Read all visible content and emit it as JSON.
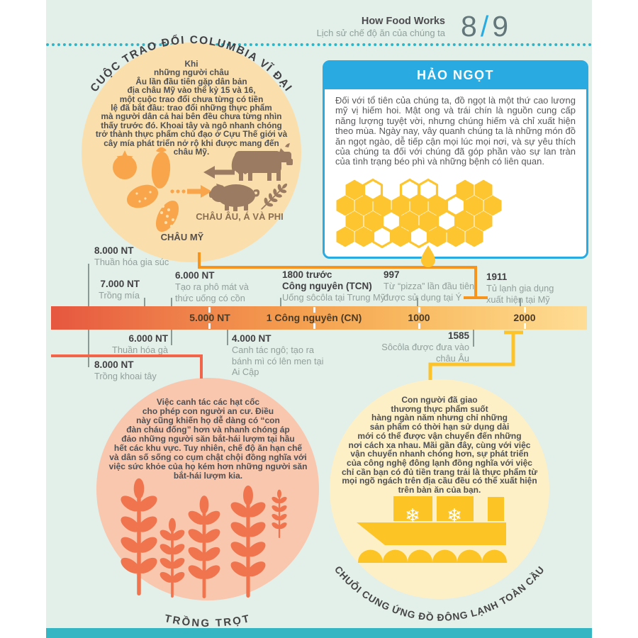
{
  "header": {
    "book_title": "How Food Works",
    "chapter_title": "Lịch sử chế độ ăn của chúng ta",
    "page_current": "8",
    "page_separator": "/",
    "page_next": "9"
  },
  "columbian_circle": {
    "arc_title": "CUỘC TRAO ĐỔI COLUMBIA VĨ ĐẠI",
    "body": [
      "Khi",
      "những người châu",
      "Âu lần đầu tiên gặp dân bản",
      "địa châu Mỹ vào thế kỷ 15 và 16,",
      "một cuộc trao đổi chưa từng có tiền",
      "lệ đã bắt đầu: trao đổi những thực phẩm",
      "mà người dân cả hai bên đều chưa từng nhìn",
      "thấy trước đó. Khoai tây và ngô nhanh chóng",
      "trở thành thực phẩm chủ đạo ở Cựu Thế giới và",
      "cây mía phát triển nở rộ khi được mang đến",
      "châu Mỹ."
    ],
    "label_old_world": "CHÂU ÂU, Á VÀ PHI",
    "label_new_world": "CHÂU MỸ"
  },
  "sweet_box": {
    "title": "HẢO NGỌT",
    "body": "Đối với tổ tiên của chúng ta, đồ ngọt là một thứ cao lương mỹ vị hiếm hoi. Mật ong và trái chín là nguồn cung cấp năng lượng tuyệt vời, nhưng chúng hiếm và chỉ xuất hiện theo mùa. Ngày nay, vây quanh chúng ta là những món đồ ăn ngọt ngào, dễ tiếp cận mọi lúc mọi nơi, và sự yêu thích của chúng ta đối với chúng đã góp phần vào sự lan tràn của tình trạng béo phì và những bệnh có liên quan.",
    "honeycomb_rows": [
      "FO.OO.FF.",
      "FFFFFFOFF",
      "FFOFFOFF.",
      "FFOFOFFF."
    ]
  },
  "timeline": {
    "bar_labels": [
      {
        "text": "5.000 NT"
      },
      {
        "text": "1 Công nguyên (CN)"
      },
      {
        "text": "1000"
      },
      {
        "text": "2000"
      }
    ],
    "events_above": [
      {
        "year": "8.000 NT",
        "desc": "Thuần hóa gia súc"
      },
      {
        "year": "7.000 NT",
        "desc": "Trồng mía"
      },
      {
        "year": "6.000 NT",
        "desc": "Tạo ra phô mát và\nthức uống có cồn"
      },
      {
        "year": "1800 trước\nCông nguyên (TCN)",
        "desc": "Uống sôcôla tại Trung Mỹ"
      },
      {
        "year": "997",
        "desc": "Từ “pizza” lần đầu tiên\nđược sử dụng tại Ý"
      },
      {
        "year": "1911",
        "desc": "Tủ lạnh gia dụng\nxuất hiện tại Mỹ"
      }
    ],
    "events_below": [
      {
        "year": "6.000 NT",
        "desc": "Thuần hóa gà"
      },
      {
        "year": "4.000 NT",
        "desc": "Canh tác ngô; tạo ra\nbánh mì có lên men tại\nAi Cập"
      },
      {
        "year": "8.000 NT",
        "desc": "Trồng khoai tây"
      },
      {
        "year": "1585",
        "desc": "Sôcôla được đưa vào\nchâu Âu"
      }
    ]
  },
  "farming_circle": {
    "body": [
      "Việc canh tác các hạt cốc",
      "cho phép con người an cư. Điều",
      "này cũng khiến họ dễ dàng có “con",
      "đàn cháu đống” hơn và nhanh chóng áp",
      "đảo những người săn bắt-hái lượm tại hầu",
      "hết các khu vực. Tuy nhiên, chế độ ăn hạn chế",
      "và dân số sống co cụm chật chội đồng nghĩa với",
      "việc sức khỏe của họ kém hơn những người săn",
      "bắt-hái lượm kia."
    ],
    "arc_label": "TRỒNG TRỌT"
  },
  "frozen_circle": {
    "body": [
      "Con người đã giao",
      "thương thực phẩm suốt",
      "hàng ngàn năm nhưng chỉ những",
      "sản phẩm có thời hạn sử dụng dài",
      "mới có thể được vận chuyển đến những",
      "nơi cách xa nhau. Mãi gần đây, cùng với việc",
      "vận chuyển nhanh chóng hơn, sự phát triển",
      "của công nghệ đông lạnh đồng nghĩa với việc",
      "chỉ cần bạn có đủ tiền trang trải là thực phẩm từ",
      "mọi ngõ ngách trên địa cầu đều có thể xuất hiện",
      "trên bàn ăn của bạn."
    ],
    "arc_label": "CHUỖI CUNG ỨNG ĐỒ ĐÔNG LẠNH TOÀN CẦU"
  },
  "icons": {
    "snowflake": "❄"
  },
  "colors": {
    "background_mint": "#e3efe9",
    "teal_accent": "#2eb6c8",
    "cyan_box": "#29abe2",
    "honey_yellow": "#fdc52f",
    "timeline_left": "#e6573f",
    "timeline_right": "#fedd96",
    "orange_icons": "#f9a54c",
    "brown_icons": "#9b7b61",
    "wheat_red": "#f0744d",
    "circle_cream": "#fadfac",
    "circle_pink": "#f9c6ae",
    "circle_pale_yellow": "#fdf0c6"
  }
}
